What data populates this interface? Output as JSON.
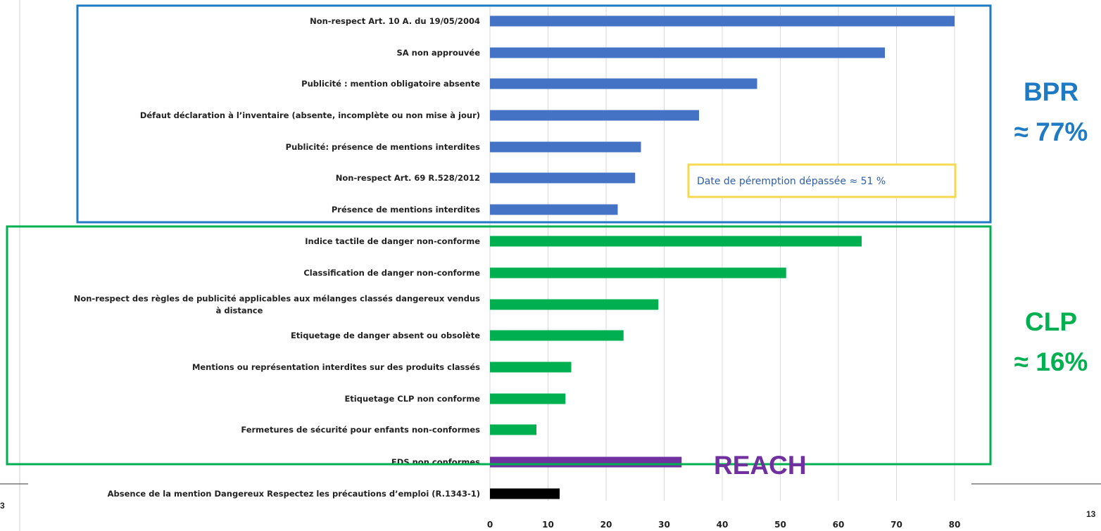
{
  "chart_data": {
    "type": "bar",
    "orientation": "horizontal",
    "categories": [
      "Non-respect Art. 10 A. du 19/05/2004",
      "SA non approuvée",
      "Publicité : mention obligatoire absente",
      "Défaut déclaration à l’inventaire (absente, incomplète ou non mise à jour)",
      "Publicité: présence de mentions interdites",
      "Non-respect Art. 69 R.528/2012",
      "Présence de mentions interdites",
      "Indice tactile de danger non-conforme",
      "Classification de danger non-conforme",
      "Non-respect des règles de publicité applicables aux mélanges classés dangereux vendus|à distance",
      "Etiquetage de danger absent ou obsolète",
      "Mentions ou représentation interdites sur des produits classés",
      "Etiquetage CLP non conforme",
      "Fermetures de sécurité pour enfants non-conformes",
      "FDS non conformes",
      "Absence de la mention Dangereux Respectez les précautions d’emploi (R.1343-1)"
    ],
    "values": [
      80,
      68,
      46,
      36,
      26,
      25,
      22,
      64,
      51,
      29,
      23,
      14,
      13,
      8,
      33,
      12
    ],
    "bar_colors": [
      "#4472C4",
      "#4472C4",
      "#4472C4",
      "#4472C4",
      "#4472C4",
      "#4472C4",
      "#4472C4",
      "#00B050",
      "#00B050",
      "#00B050",
      "#00B050",
      "#00B050",
      "#00B050",
      "#00B050",
      "#7030A0",
      "#000000"
    ],
    "xlim": [
      0,
      80
    ],
    "xticks": [
      0,
      10,
      20,
      30,
      40,
      50,
      60,
      70,
      80
    ],
    "grid": true,
    "title": "",
    "xlabel": "",
    "ylabel": ""
  },
  "groups": {
    "bpr": {
      "line1": "BPR",
      "line2": "≈ 77%",
      "color": "#1F7AC4"
    },
    "clp": {
      "line1": "CLP",
      "line2": "≈ 16%",
      "color": "#00B050"
    },
    "reach": {
      "label": "REACH",
      "color": "#7030A0"
    }
  },
  "note": {
    "text": "Date de péremption dépassée ≈ 51 %",
    "border_color": "#F5D94E",
    "text_color": "#2E5DA8"
  },
  "page_number": "13",
  "left_edge_char": "3",
  "colors": {
    "grid": "#d9d9d9",
    "rule": "#333333"
  }
}
